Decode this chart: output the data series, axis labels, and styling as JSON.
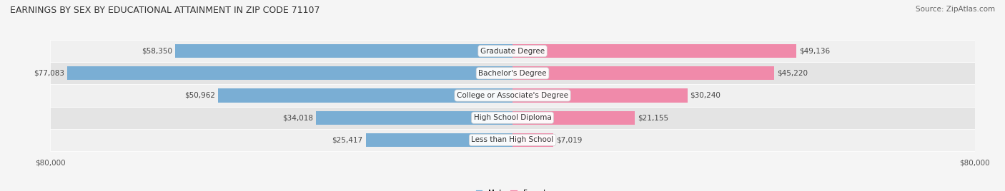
{
  "title": "EARNINGS BY SEX BY EDUCATIONAL ATTAINMENT IN ZIP CODE 71107",
  "source": "Source: ZipAtlas.com",
  "categories": [
    "Less than High School",
    "High School Diploma",
    "College or Associate's Degree",
    "Bachelor's Degree",
    "Graduate Degree"
  ],
  "male_values": [
    25417,
    34018,
    50962,
    77083,
    58350
  ],
  "female_values": [
    7019,
    21155,
    30240,
    45220,
    49136
  ],
  "male_color": "#7aaed4",
  "female_color": "#f08aaa",
  "max_val": 80000,
  "bg_color": "#f5f5f5",
  "row_bg_light": "#f9f9f9",
  "row_bg_dark": "#eeeeee",
  "label_bg": "#ffffff",
  "title_fontsize": 9,
  "source_fontsize": 7.5,
  "bar_label_fontsize": 7.5,
  "category_fontsize": 7.5,
  "axis_label_fontsize": 7.5
}
